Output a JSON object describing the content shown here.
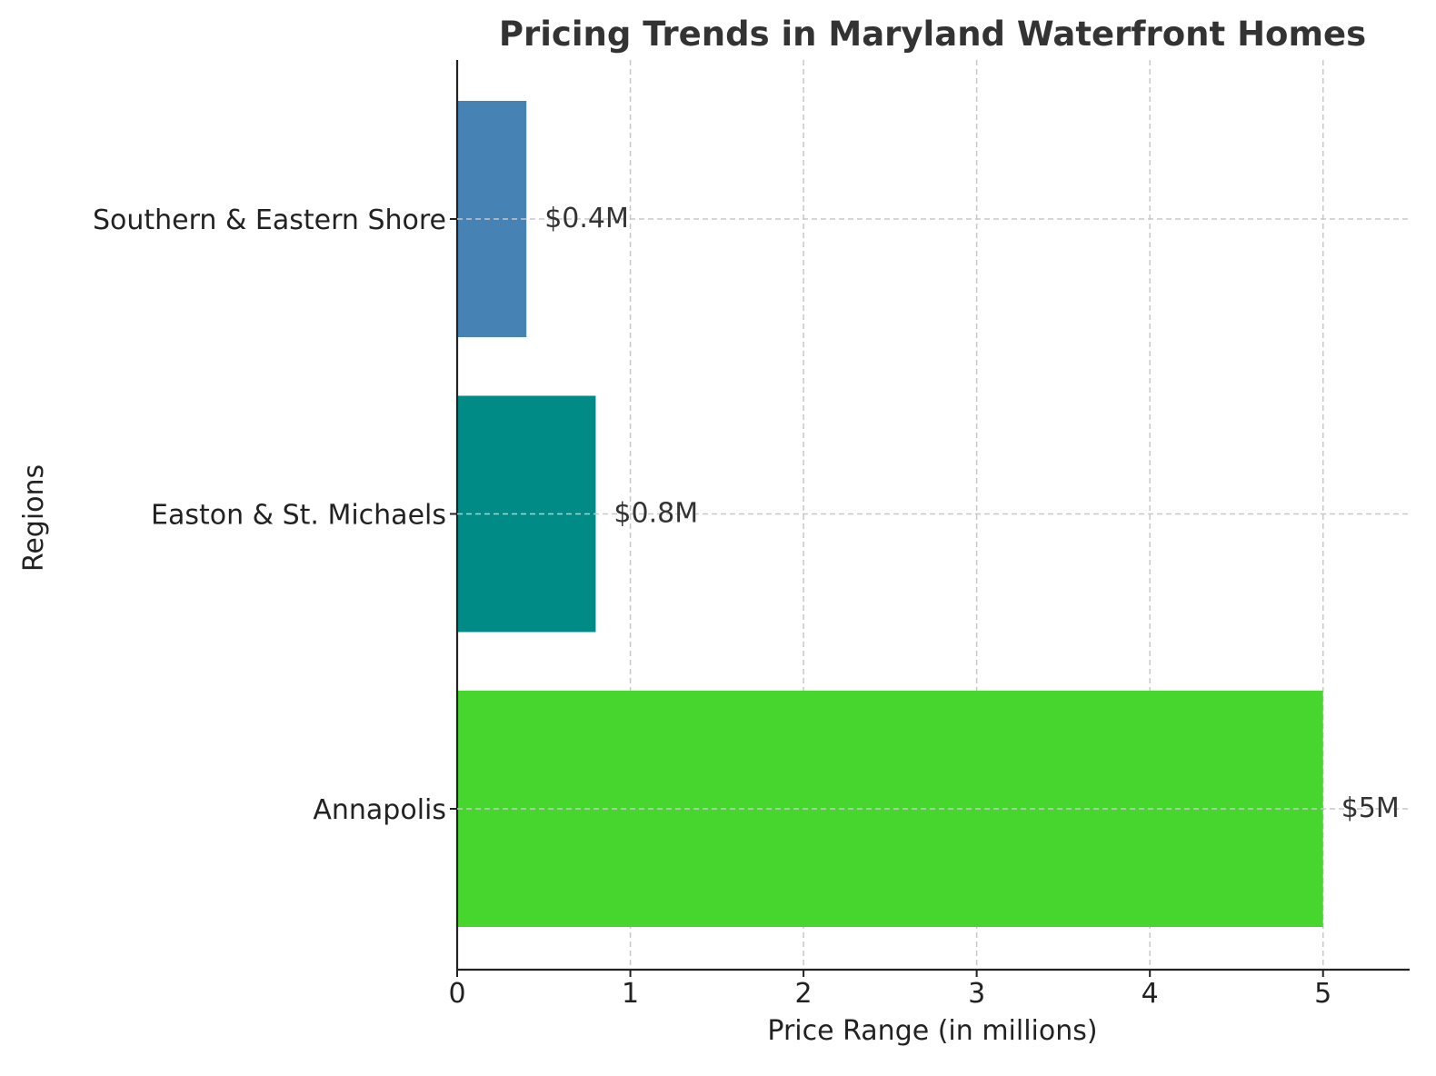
{
  "chart_data": {
    "type": "bar",
    "orientation": "horizontal",
    "title": "Pricing Trends in Maryland Waterfront Homes",
    "xlabel": "Price Range (in millions)",
    "ylabel": "Regions",
    "categories": [
      "Annapolis",
      "Easton & St. Michaels",
      "Southern & Eastern Shore"
    ],
    "values": [
      5,
      0.8,
      0.4
    ],
    "data_labels": [
      "$5M",
      "$0.8M",
      "$0.4M"
    ],
    "colors": [
      "#47d62d",
      "#008b87",
      "#4682b4"
    ],
    "xlim": [
      0,
      5.5
    ],
    "xticks": [
      0,
      1,
      2,
      3,
      4,
      5
    ],
    "xtick_labels": [
      "0",
      "1",
      "2",
      "3",
      "4",
      "5"
    ],
    "grid": true
  }
}
